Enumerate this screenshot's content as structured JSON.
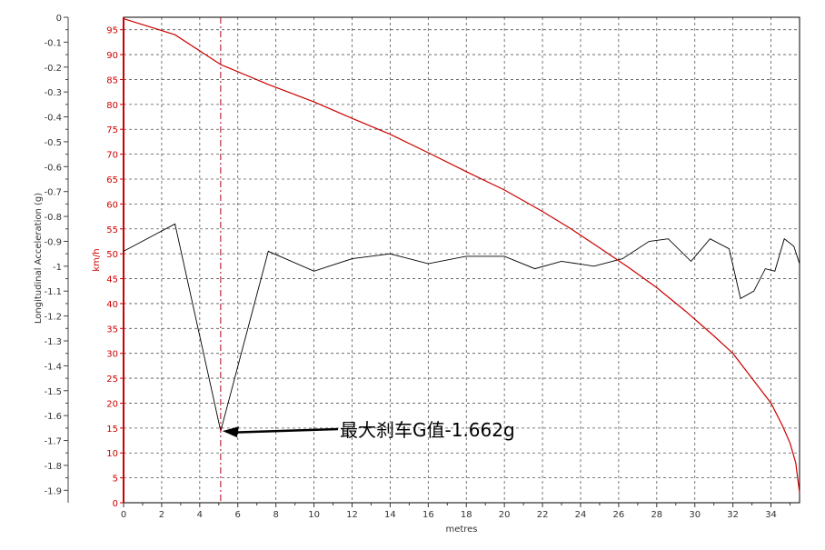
{
  "chart_data": {
    "type": "line",
    "xlabel": "metres",
    "ylabel_left": "Longitudinal Acceleration (g)",
    "ylabel_right": "km/h",
    "xlim": [
      0,
      35.5
    ],
    "ylim_left": [
      0,
      -1.95
    ],
    "ylim_right": [
      0,
      97.5
    ],
    "grid": true,
    "x_ticks": [
      0,
      2,
      4,
      6,
      8,
      10,
      12,
      14,
      16,
      18,
      20,
      22,
      24,
      26,
      28,
      30,
      32,
      34
    ],
    "x_tick_labels": [
      "0",
      "2",
      "4",
      "6",
      "8",
      "10",
      "12",
      "14",
      "16",
      "18",
      "20",
      "22",
      "24",
      "26",
      "28",
      "30",
      "32",
      "34"
    ],
    "left_ticks": [
      0,
      -0.1,
      -0.2,
      -0.3,
      -0.4,
      -0.5,
      -0.6,
      -0.7,
      -0.8,
      -0.9,
      -1,
      -1.1,
      -1.2,
      -1.3,
      -1.4,
      -1.5,
      -1.6,
      -1.7,
      -1.8,
      -1.9
    ],
    "left_tick_labels": [
      "0",
      "-0.1",
      "-0.2",
      "-0.3",
      "-0.4",
      "-0.5",
      "-0.6",
      "-0.7",
      "-0.8",
      "-0.9",
      "-1",
      "-1.1",
      "-1.2",
      "-1.3",
      "-1.4",
      "-1.5",
      "-1.6",
      "-1.7",
      "-1.8",
      "-1.9"
    ],
    "right_ticks": [
      0,
      5,
      10,
      15,
      20,
      25,
      30,
      35,
      40,
      45,
      50,
      55,
      60,
      65,
      70,
      75,
      80,
      85,
      90,
      95
    ],
    "right_tick_labels": [
      "0",
      "5",
      "10",
      "15",
      "20",
      "25",
      "30",
      "35",
      "40",
      "45",
      "50",
      "55",
      "60",
      "65",
      "70",
      "75",
      "80",
      "85",
      "90",
      "95"
    ],
    "series": [
      {
        "axis": "left",
        "color": "#000000",
        "x": [
          0,
          2.7,
          5.1,
          7.6,
          10,
          12,
          14,
          16,
          18,
          20,
          21.6,
          23,
          24.7,
          26.2,
          27.6,
          28.6,
          29.8,
          30.8,
          31.8,
          32.4,
          33.1,
          33.7,
          34.2,
          34.7,
          35.2,
          35.5
        ],
        "y": [
          -0.94,
          -0.83,
          -1.662,
          -0.94,
          -1.02,
          -0.97,
          -0.95,
          -0.99,
          -0.96,
          -0.96,
          -1.01,
          -0.98,
          -1.0,
          -0.97,
          -0.9,
          -0.89,
          -0.98,
          -0.89,
          -0.93,
          -1.13,
          -1.1,
          -1.01,
          -1.02,
          -0.89,
          -0.92,
          -0.99
        ]
      },
      {
        "axis": "right",
        "color": "#cc0000",
        "x": [
          0,
          2.7,
          5.1,
          7.6,
          10,
          12,
          14,
          16,
          18,
          20,
          22,
          23.5,
          25,
          26.5,
          28,
          29.5,
          31,
          32,
          33,
          34,
          34.6,
          35,
          35.3,
          35.5
        ],
        "y": [
          97.2,
          94,
          88,
          84,
          80.5,
          77.2,
          74,
          70.3,
          66.5,
          62.8,
          58.5,
          55,
          51.2,
          47.3,
          43.2,
          38.5,
          33.5,
          30,
          25,
          20,
          15.5,
          12,
          8,
          2
        ]
      }
    ],
    "marker_x": 5.1,
    "annotation": {
      "text": "最大刹车G值-1.662g",
      "x": 5.1,
      "y": -1.662
    }
  }
}
